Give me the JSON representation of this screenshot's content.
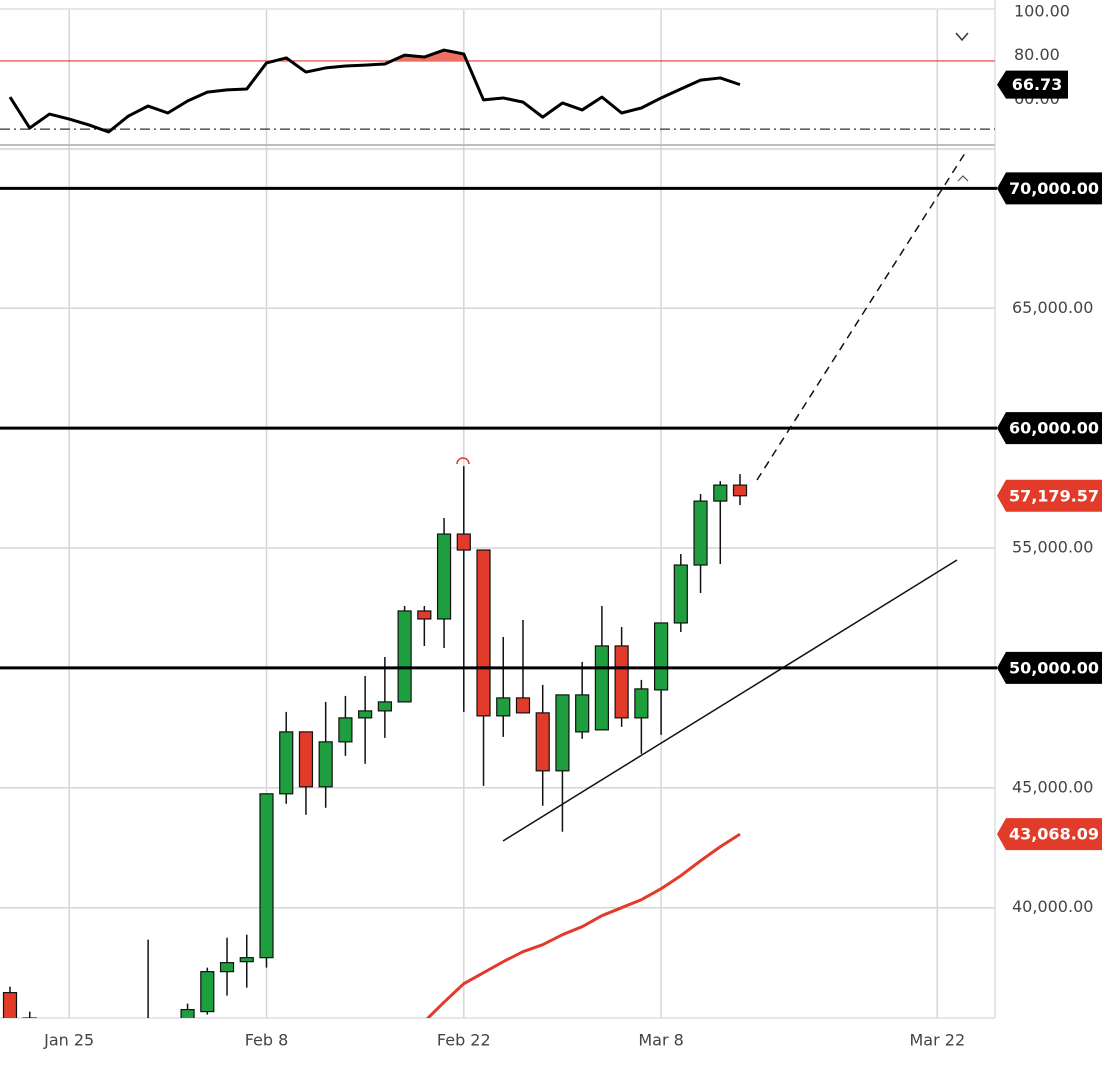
{
  "chart_data": [
    {
      "type": "line",
      "values": [
        61.0,
        46.8,
        53.2,
        50.9,
        48.2,
        45.0,
        52.3,
        56.9,
        53.7,
        59.2,
        63.3,
        64.3,
        64.7,
        76.7,
        79.0,
        72.5,
        74.4,
        75.3,
        75.7,
        76.2,
        80.3,
        79.4,
        82.6,
        80.8,
        59.7,
        60.6,
        58.7,
        51.8,
        58.3,
        55.1,
        61.0,
        53.7,
        56.0,
        60.6,
        64.7,
        68.8,
        69.8,
        66.73,
        null,
        null,
        null,
        null,
        null,
        null,
        null,
        null,
        null,
        null
      ],
      "color": "#000000",
      "ylim": [
        39,
        101
      ],
      "yticks": [
        {
          "value": 100,
          "label": "100.00"
        },
        {
          "value": 80,
          "label": "80.00"
        },
        {
          "value": 60,
          "label": "60.00"
        }
      ],
      "bands": [
        77.6,
        46.3
      ],
      "band_colors": [
        "#e53935",
        "#333333"
      ],
      "fill_color": "#ef6f63",
      "last_value": {
        "value": 66.73,
        "label": "66.73"
      }
    },
    {
      "type": "candlestick",
      "categories": [
        null,
        null,
        null,
        "Jan 25",
        null,
        null,
        null,
        null,
        null,
        null,
        null,
        null,
        null,
        "Feb 8",
        null,
        null,
        null,
        null,
        null,
        null,
        null,
        null,
        null,
        "Feb 22",
        null,
        null,
        null,
        null,
        null,
        null,
        null,
        null,
        null,
        "Mar 8",
        null,
        null,
        null,
        null,
        null,
        null,
        null,
        null,
        null,
        null,
        null,
        null,
        null,
        "Mar 22"
      ],
      "open": [
        36458,
        35400,
        null,
        null,
        null,
        null,
        null,
        34800,
        null,
        35300,
        35667,
        37333,
        37750,
        37917,
        44750,
        47333,
        45042,
        46917,
        47917,
        48208,
        48583,
        52375,
        52042,
        55583,
        54917,
        48000,
        48750,
        48125,
        45708,
        47333,
        47417,
        50917,
        47917,
        49083,
        51875,
        54292,
        56958,
        57625,
        null,
        null,
        null,
        null,
        null,
        null,
        null,
        null,
        null,
        null
      ],
      "high": [
        36708,
        35667,
        null,
        null,
        null,
        null,
        null,
        38667,
        null,
        36000,
        37500,
        38750,
        38875,
        44750,
        48167,
        47333,
        48583,
        48833,
        49667,
        50458,
        52583,
        52583,
        56250,
        58417,
        54917,
        51292,
        52000,
        49292,
        48875,
        50250,
        52583,
        51708,
        49500,
        51875,
        54750,
        57250,
        57792,
        58083,
        null,
        null,
        null,
        null,
        null,
        null,
        null,
        null,
        null,
        null
      ],
      "low": [
        35200,
        35000,
        null,
        null,
        null,
        null,
        null,
        34500,
        null,
        35200,
        35542,
        36333,
        36667,
        37500,
        44333,
        43875,
        44167,
        46333,
        46000,
        47083,
        48583,
        50917,
        50833,
        48167,
        45083,
        47125,
        48125,
        44250,
        43167,
        47042,
        47417,
        47542,
        46417,
        47208,
        51500,
        53125,
        54333,
        56792,
        null,
        null,
        null,
        null,
        null,
        null,
        null,
        null,
        null,
        null
      ],
      "close": [
        35300,
        35200,
        null,
        null,
        null,
        null,
        null,
        35000,
        null,
        35750,
        37333,
        37708,
        37917,
        44750,
        47333,
        45042,
        46917,
        47917,
        48208,
        48583,
        52375,
        52042,
        55583,
        54917,
        48000,
        48750,
        48125,
        45708,
        48875,
        48875,
        50917,
        47917,
        49125,
        51875,
        54292,
        56958,
        57625,
        57179.57,
        null,
        null,
        null,
        null,
        null,
        null,
        null,
        null,
        null,
        null
      ],
      "up_color": "#1e9e3e",
      "down_color": "#e23b2a",
      "ylim": [
        35400,
        71600
      ],
      "yticks": [
        {
          "value": 40000,
          "label": "40,000.00"
        },
        {
          "value": 45000,
          "label": "45,000.00"
        },
        {
          "value": 55000,
          "label": "55,000.00"
        },
        {
          "value": 65000,
          "label": "65,000.00"
        }
      ],
      "grid": true,
      "levels": [
        {
          "value": 70000,
          "label": "70,000.00"
        },
        {
          "value": 60000,
          "label": "60,000.00"
        },
        {
          "value": 50000,
          "label": "50,000.00"
        }
      ],
      "last_price": {
        "value": 57179.57,
        "label": "57,179.57"
      },
      "ma": {
        "values": [
          null,
          null,
          null,
          null,
          null,
          null,
          null,
          null,
          null,
          null,
          null,
          null,
          null,
          null,
          null,
          null,
          null,
          null,
          null,
          null,
          null,
          35250,
          36060,
          36833,
          37292,
          37750,
          38167,
          38458,
          38875,
          39208,
          39667,
          40000,
          40333,
          40792,
          41333,
          41958,
          42542,
          43068.09,
          null,
          null,
          null,
          null,
          null,
          null,
          null,
          null,
          null,
          null
        ],
        "color": "#e23b2a",
        "last": {
          "value": 43068.09,
          "label": "43,068.09"
        }
      }
    }
  ]
}
